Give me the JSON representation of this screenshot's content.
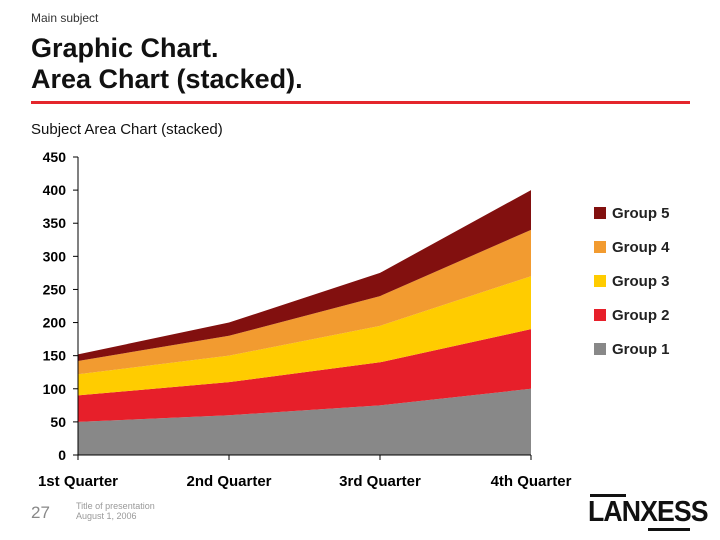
{
  "header": {
    "main_subject": "Main subject",
    "title_line1": "Graphic Chart.",
    "title_line2": "Area Chart (stacked)."
  },
  "subtitle": {
    "bold": "Subject Area Chart",
    "plain": " (stacked)"
  },
  "chart_data": {
    "type": "area",
    "stacked": true,
    "categories": [
      "1st Quarter",
      "2nd Quarter",
      "3rd Quarter",
      "4th Quarter"
    ],
    "series": [
      {
        "name": "Group 1",
        "color": "#888888",
        "values": [
          50,
          60,
          75,
          100
        ]
      },
      {
        "name": "Group 2",
        "color": "#e71f2a",
        "values": [
          40,
          50,
          65,
          90
        ]
      },
      {
        "name": "Group 3",
        "color": "#ffcc00",
        "values": [
          32,
          40,
          55,
          80
        ]
      },
      {
        "name": "Group 4",
        "color": "#f29b30",
        "values": [
          20,
          30,
          45,
          70
        ]
      },
      {
        "name": "Group 5",
        "color": "#82100f",
        "values": [
          10,
          20,
          35,
          60
        ]
      }
    ],
    "ylim": [
      0,
      450
    ],
    "yticks": [
      0,
      50,
      100,
      150,
      200,
      250,
      300,
      350,
      400,
      450
    ],
    "legend_position": "right",
    "legend_order": [
      "Group 5",
      "Group 4",
      "Group 3",
      "Group 2",
      "Group 1"
    ],
    "grid": false
  },
  "footer": {
    "page_number": "27",
    "presentation_title": "Title of presentation",
    "date": "August 1, 2006"
  },
  "logo": {
    "text": "LANXESS",
    "accent_color": "#e4262c"
  }
}
